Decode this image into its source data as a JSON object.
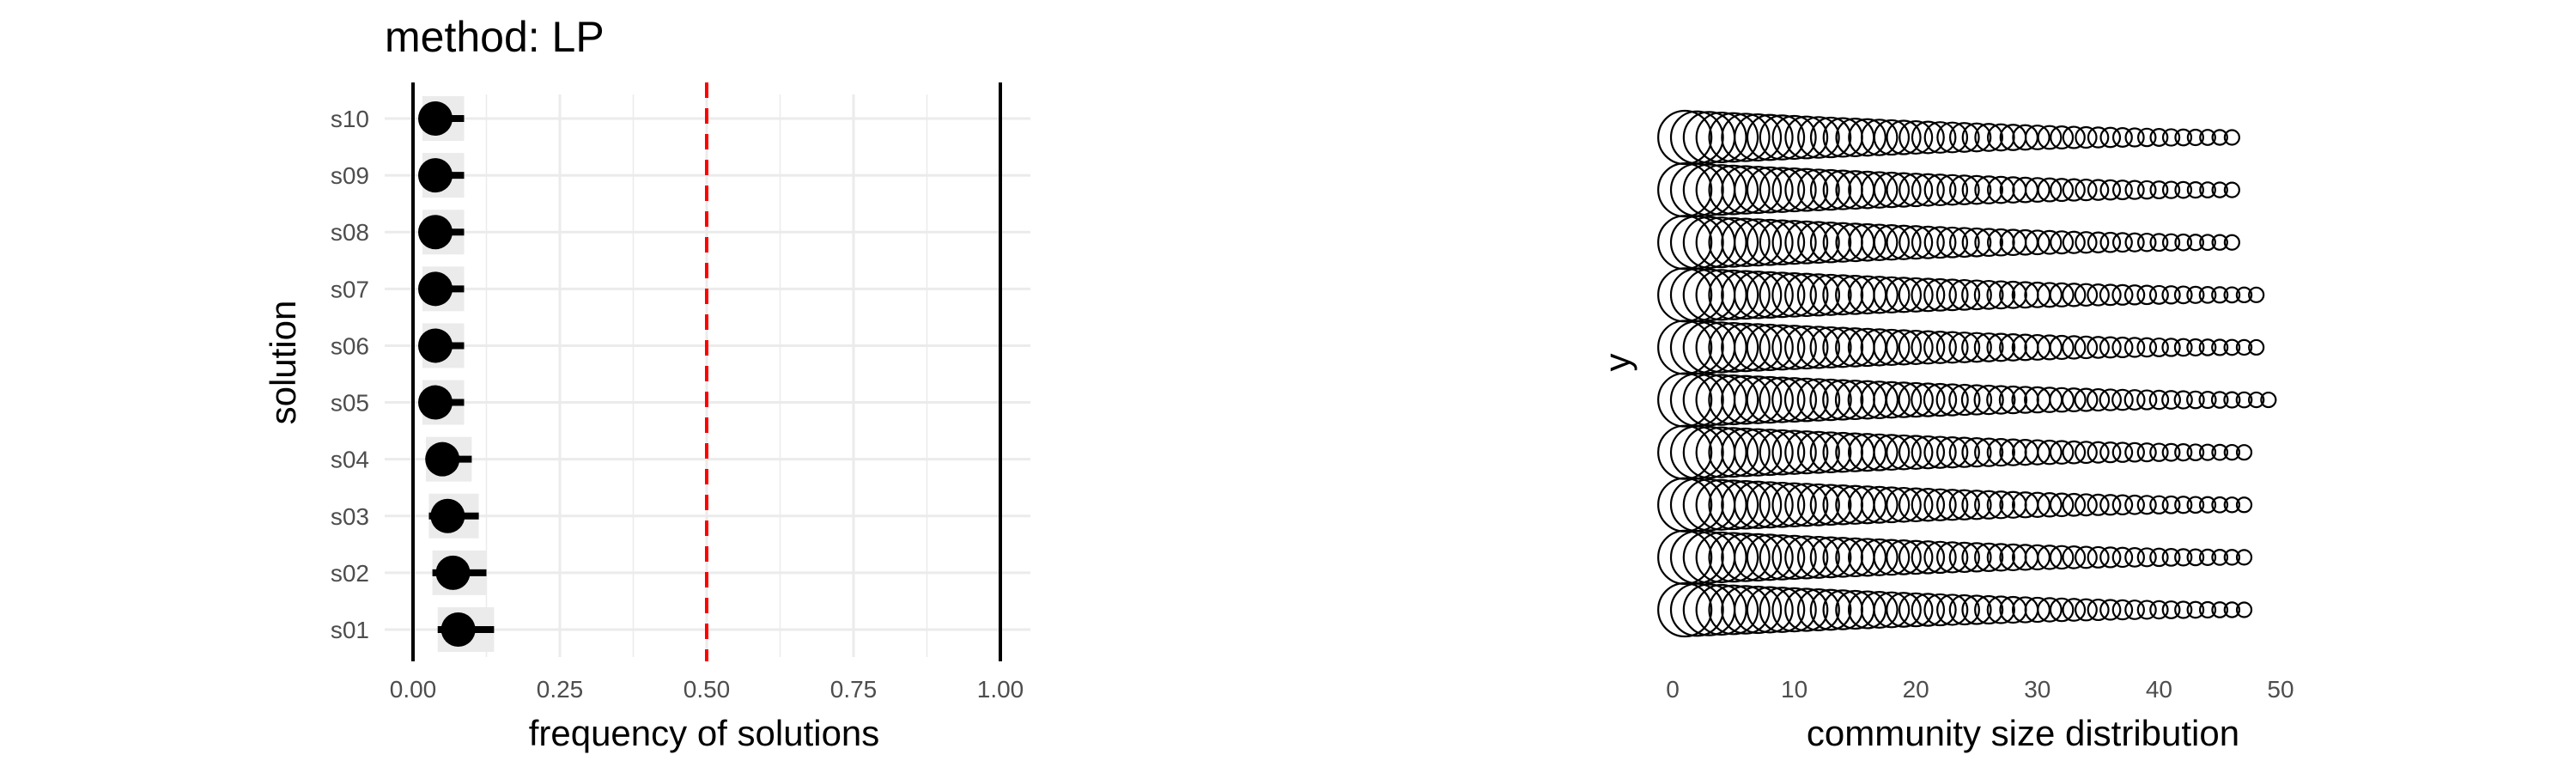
{
  "chart_data": [
    {
      "type": "scatter",
      "title": "method: LP",
      "xlabel": "frequency of solutions",
      "ylabel": "solution",
      "xlim": [
        0,
        1
      ],
      "x_ticks": [
        "0.00",
        "0.25",
        "0.50",
        "0.75",
        "1.00"
      ],
      "categories": [
        "s01",
        "s02",
        "s03",
        "s04",
        "s05",
        "s06",
        "s07",
        "s08",
        "s09",
        "s10"
      ],
      "series": [
        {
          "values": [
            0.077,
            0.068,
            0.059,
            0.05,
            0.038,
            0.038,
            0.038,
            0.038,
            0.038,
            0.038
          ],
          "interval_low": [
            0.042,
            0.033,
            0.027,
            0.022,
            0.016,
            0.016,
            0.016,
            0.016,
            0.016,
            0.016
          ],
          "interval_high": [
            0.138,
            0.125,
            0.112,
            0.1,
            0.087,
            0.087,
            0.087,
            0.087,
            0.087,
            0.087
          ]
        }
      ],
      "reference_lines": [
        {
          "x": 0.5,
          "style": "dashed",
          "color": "#ff0000"
        },
        {
          "x": 0,
          "style": "solid",
          "color": "#000000"
        },
        {
          "x": 1,
          "style": "solid",
          "color": "#000000"
        }
      ],
      "grid": true,
      "colors": {
        "points": "#000000",
        "shade": "#ebebeb",
        "grid": "#ebebeb"
      }
    },
    {
      "type": "scatter",
      "xlabel": "community size distribution",
      "ylabel": "y",
      "xlim": [
        0,
        50
      ],
      "x_ticks": [
        "0",
        "10",
        "20",
        "30",
        "40",
        "50"
      ],
      "rows": 10,
      "max_community_count": [
        46,
        46,
        46,
        48,
        48,
        49,
        47,
        47,
        47,
        47
      ],
      "marker": "open circle, size decreasing with community rank",
      "grid": false
    }
  ]
}
